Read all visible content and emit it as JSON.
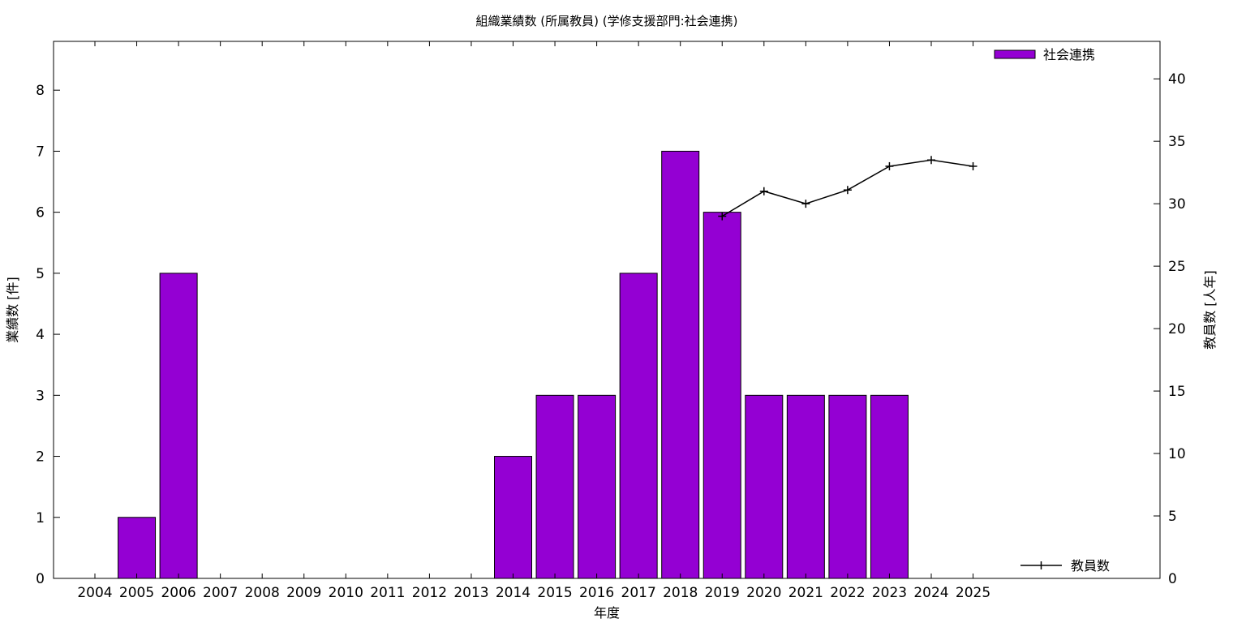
{
  "chart_data": {
    "type": "bar",
    "title": "組織業績数 (所属教員) (学修支援部門:社会連携)",
    "xlabel": "年度",
    "ylabel": "業績数 [件]",
    "y2label": "教員数 [人年]",
    "categories": [
      "2004",
      "2005",
      "2006",
      "2007",
      "2008",
      "2009",
      "2010",
      "2011",
      "2012",
      "2013",
      "2014",
      "2015",
      "2016",
      "2017",
      "2018",
      "2019",
      "2020",
      "2021",
      "2022",
      "2023",
      "2024",
      "2025"
    ],
    "series": [
      {
        "name": "社会連携",
        "type": "bar",
        "axis": "left",
        "color": "#9400d3",
        "values": [
          0,
          1,
          5,
          0,
          0,
          0,
          0,
          0,
          0,
          0,
          2,
          3,
          3,
          5,
          7,
          6,
          3,
          3,
          3,
          3,
          0,
          0
        ]
      },
      {
        "name": "教員数",
        "type": "line",
        "axis": "right",
        "color": "#000000",
        "x": [
          "2019",
          "2020",
          "2021",
          "2022",
          "2023",
          "2024",
          "2025"
        ],
        "values": [
          29,
          31,
          30,
          31.1,
          33,
          33.5,
          33
        ]
      }
    ],
    "ylim": [
      0,
      8.8
    ],
    "yticks": [
      0,
      1,
      2,
      3,
      4,
      5,
      6,
      7,
      8
    ],
    "y2lim": [
      0,
      43
    ],
    "y2ticks": [
      0,
      5,
      10,
      15,
      20,
      25,
      30,
      35,
      40
    ],
    "legend_bar_position": "top-right",
    "legend_line_position": "bottom-right",
    "grid": false
  }
}
